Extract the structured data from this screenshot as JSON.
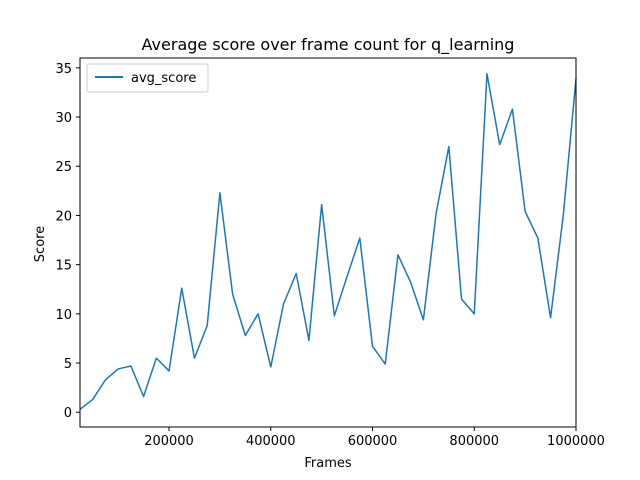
{
  "chart_data": {
    "type": "line",
    "title": "Average score over frame count for q_learning",
    "xlabel": "Frames",
    "ylabel": "Score",
    "xlim": [
      25000,
      1000000
    ],
    "ylim": [
      -1.5,
      36
    ],
    "grid": false,
    "legend_position": "top-left",
    "x_ticks": [
      200000,
      400000,
      600000,
      800000,
      1000000
    ],
    "y_ticks": [
      0,
      5,
      10,
      15,
      20,
      25,
      30,
      35
    ],
    "series": [
      {
        "name": "avg_score",
        "color": "#1f77b4",
        "x": [
          25000,
          50000,
          75000,
          100000,
          125000,
          150000,
          175000,
          200000,
          225000,
          250000,
          275000,
          300000,
          325000,
          350000,
          375000,
          400000,
          425000,
          450000,
          475000,
          500000,
          525000,
          550000,
          575000,
          600000,
          625000,
          650000,
          675000,
          700000,
          725000,
          750000,
          775000,
          800000,
          825000,
          850000,
          875000,
          900000,
          925000,
          950000,
          975000,
          1000000
        ],
        "values": [
          0.3,
          1.3,
          3.3,
          4.4,
          4.7,
          1.6,
          5.5,
          4.2,
          12.6,
          5.5,
          8.8,
          22.3,
          12.0,
          7.8,
          10.0,
          4.6,
          11.0,
          14.1,
          7.3,
          21.1,
          9.8,
          13.8,
          17.7,
          6.7,
          4.9,
          16.0,
          13.2,
          9.4,
          20.2,
          27.0,
          11.5,
          10.0,
          34.4,
          27.2,
          30.8,
          20.4,
          17.7,
          9.6,
          20.0,
          33.9
        ]
      }
    ]
  }
}
